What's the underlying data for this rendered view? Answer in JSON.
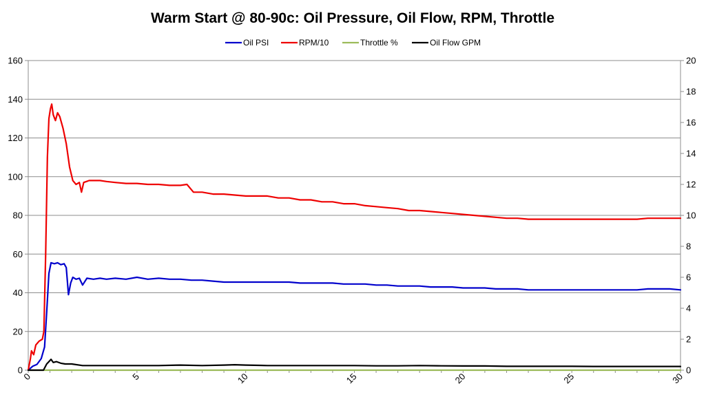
{
  "chart_data": {
    "type": "line",
    "title": "Warm Start @ 80-90c: Oil Pressure, Oil Flow, RPM, Throttle",
    "xlabel": "",
    "ylabel": "",
    "y2label": "",
    "xlim": [
      0,
      30
    ],
    "ylim": [
      0,
      160
    ],
    "y2lim": [
      0,
      20
    ],
    "x_ticks": [
      "0",
      "5",
      "10",
      "15",
      "20",
      "25",
      "30"
    ],
    "y_ticks": [
      "0",
      "20",
      "40",
      "60",
      "80",
      "100",
      "120",
      "140",
      "160"
    ],
    "y2_ticks": [
      "0",
      "2",
      "4",
      "6",
      "8",
      "10",
      "12",
      "14",
      "16",
      "18",
      "20"
    ],
    "grid": "horizontal",
    "legend_position": "top",
    "series": [
      {
        "name": "Oil PSI",
        "color": "#0000cc",
        "axis": "left",
        "points": [
          [
            0,
            0
          ],
          [
            0.2,
            2
          ],
          [
            0.4,
            3
          ],
          [
            0.6,
            6
          ],
          [
            0.75,
            12
          ],
          [
            0.85,
            30
          ],
          [
            0.95,
            50
          ],
          [
            1.05,
            55.5
          ],
          [
            1.2,
            55
          ],
          [
            1.35,
            55.5
          ],
          [
            1.5,
            54.5
          ],
          [
            1.65,
            55
          ],
          [
            1.75,
            53
          ],
          [
            1.85,
            39
          ],
          [
            1.95,
            45
          ],
          [
            2.05,
            48
          ],
          [
            2.2,
            47
          ],
          [
            2.35,
            47.5
          ],
          [
            2.5,
            44
          ],
          [
            2.7,
            47.5
          ],
          [
            3,
            47
          ],
          [
            3.3,
            47.5
          ],
          [
            3.6,
            47
          ],
          [
            4,
            47.5
          ],
          [
            4.5,
            47
          ],
          [
            5,
            48
          ],
          [
            5.5,
            47
          ],
          [
            6,
            47.5
          ],
          [
            6.5,
            47
          ],
          [
            7,
            47
          ],
          [
            7.5,
            46.5
          ],
          [
            8,
            46.5
          ],
          [
            8.5,
            46
          ],
          [
            9,
            45.5
          ],
          [
            9.5,
            45.5
          ],
          [
            10,
            45.5
          ],
          [
            10.5,
            45.5
          ],
          [
            11,
            45.5
          ],
          [
            11.5,
            45.5
          ],
          [
            12,
            45.5
          ],
          [
            12.5,
            45
          ],
          [
            13,
            45
          ],
          [
            13.5,
            45
          ],
          [
            14,
            45
          ],
          [
            14.5,
            44.5
          ],
          [
            15,
            44.5
          ],
          [
            15.5,
            44.5
          ],
          [
            16,
            44
          ],
          [
            16.5,
            44
          ],
          [
            17,
            43.5
          ],
          [
            17.5,
            43.5
          ],
          [
            18,
            43.5
          ],
          [
            18.5,
            43
          ],
          [
            19,
            43
          ],
          [
            19.5,
            43
          ],
          [
            20,
            42.5
          ],
          [
            20.5,
            42.5
          ],
          [
            21,
            42.5
          ],
          [
            21.5,
            42
          ],
          [
            22,
            42
          ],
          [
            22.5,
            42
          ],
          [
            23,
            41.5
          ],
          [
            23.5,
            41.5
          ],
          [
            24,
            41.5
          ],
          [
            24.5,
            41.5
          ],
          [
            25,
            41.5
          ],
          [
            25.5,
            41.5
          ],
          [
            26,
            41.5
          ],
          [
            26.5,
            41.5
          ],
          [
            27,
            41.5
          ],
          [
            27.5,
            41.5
          ],
          [
            28,
            41.5
          ],
          [
            28.5,
            42
          ],
          [
            29,
            42
          ],
          [
            29.5,
            42
          ],
          [
            30,
            41.5
          ]
        ]
      },
      {
        "name": "RPM/10",
        "color": "#ee0000",
        "axis": "left",
        "points": [
          [
            0,
            0
          ],
          [
            0.1,
            6
          ],
          [
            0.15,
            10
          ],
          [
            0.25,
            8
          ],
          [
            0.35,
            13
          ],
          [
            0.5,
            15
          ],
          [
            0.65,
            16
          ],
          [
            0.72,
            20
          ],
          [
            0.8,
            60
          ],
          [
            0.88,
            110
          ],
          [
            0.95,
            130
          ],
          [
            1.02,
            135
          ],
          [
            1.08,
            137.5
          ],
          [
            1.15,
            132
          ],
          [
            1.25,
            129
          ],
          [
            1.35,
            133
          ],
          [
            1.45,
            131
          ],
          [
            1.6,
            125
          ],
          [
            1.75,
            117
          ],
          [
            1.9,
            105
          ],
          [
            2.05,
            98
          ],
          [
            2.2,
            96
          ],
          [
            2.35,
            97
          ],
          [
            2.45,
            92
          ],
          [
            2.55,
            97
          ],
          [
            2.8,
            98
          ],
          [
            3,
            98
          ],
          [
            3.3,
            98
          ],
          [
            3.6,
            97.5
          ],
          [
            4,
            97
          ],
          [
            4.5,
            96.5
          ],
          [
            5,
            96.5
          ],
          [
            5.5,
            96
          ],
          [
            6,
            96
          ],
          [
            6.5,
            95.5
          ],
          [
            7,
            95.5
          ],
          [
            7.3,
            96
          ],
          [
            7.6,
            92
          ],
          [
            8,
            92
          ],
          [
            8.5,
            91
          ],
          [
            9,
            91
          ],
          [
            9.5,
            90.5
          ],
          [
            10,
            90
          ],
          [
            10.5,
            90
          ],
          [
            11,
            90
          ],
          [
            11.5,
            89
          ],
          [
            12,
            89
          ],
          [
            12.5,
            88
          ],
          [
            13,
            88
          ],
          [
            13.5,
            87
          ],
          [
            14,
            87
          ],
          [
            14.5,
            86
          ],
          [
            15,
            86
          ],
          [
            15.5,
            85
          ],
          [
            16,
            84.5
          ],
          [
            16.5,
            84
          ],
          [
            17,
            83.5
          ],
          [
            17.5,
            82.5
          ],
          [
            18,
            82.5
          ],
          [
            18.5,
            82
          ],
          [
            19,
            81.5
          ],
          [
            19.5,
            81
          ],
          [
            20,
            80.5
          ],
          [
            20.5,
            80
          ],
          [
            21,
            79.5
          ],
          [
            21.5,
            79
          ],
          [
            22,
            78.5
          ],
          [
            22.5,
            78.5
          ],
          [
            23,
            78
          ],
          [
            23.5,
            78
          ],
          [
            24,
            78
          ],
          [
            24.5,
            78
          ],
          [
            25,
            78
          ],
          [
            25.5,
            78
          ],
          [
            26,
            78
          ],
          [
            26.5,
            78
          ],
          [
            27,
            78
          ],
          [
            27.5,
            78
          ],
          [
            28,
            78
          ],
          [
            28.5,
            78.5
          ],
          [
            29,
            78.5
          ],
          [
            29.5,
            78.5
          ],
          [
            30,
            78.5
          ]
        ]
      },
      {
        "name": "Throttle %",
        "color": "#9bbb59",
        "axis": "left",
        "points": [
          [
            0,
            0
          ],
          [
            30,
            0
          ]
        ]
      },
      {
        "name": "Oil Flow GPM",
        "color": "#000000",
        "axis": "right",
        "points": [
          [
            0,
            0
          ],
          [
            0.7,
            0
          ],
          [
            0.85,
            0.4
          ],
          [
            0.95,
            0.55
          ],
          [
            1.05,
            0.7
          ],
          [
            1.15,
            0.5
          ],
          [
            1.3,
            0.55
          ],
          [
            1.5,
            0.45
          ],
          [
            1.7,
            0.4
          ],
          [
            2,
            0.4
          ],
          [
            2.5,
            0.3
          ],
          [
            3,
            0.3
          ],
          [
            4,
            0.3
          ],
          [
            5,
            0.3
          ],
          [
            6,
            0.3
          ],
          [
            7,
            0.33
          ],
          [
            8,
            0.3
          ],
          [
            9,
            0.33
          ],
          [
            9.5,
            0.35
          ],
          [
            10,
            0.33
          ],
          [
            11,
            0.3
          ],
          [
            12,
            0.3
          ],
          [
            13,
            0.3
          ],
          [
            14,
            0.3
          ],
          [
            15,
            0.3
          ],
          [
            16,
            0.28
          ],
          [
            17,
            0.28
          ],
          [
            18,
            0.3
          ],
          [
            19,
            0.28
          ],
          [
            20,
            0.27
          ],
          [
            21,
            0.27
          ],
          [
            22,
            0.25
          ],
          [
            23,
            0.25
          ],
          [
            24,
            0.25
          ],
          [
            25,
            0.25
          ],
          [
            26,
            0.24
          ],
          [
            27,
            0.24
          ],
          [
            28,
            0.24
          ],
          [
            29,
            0.24
          ],
          [
            30,
            0.24
          ]
        ]
      }
    ]
  }
}
